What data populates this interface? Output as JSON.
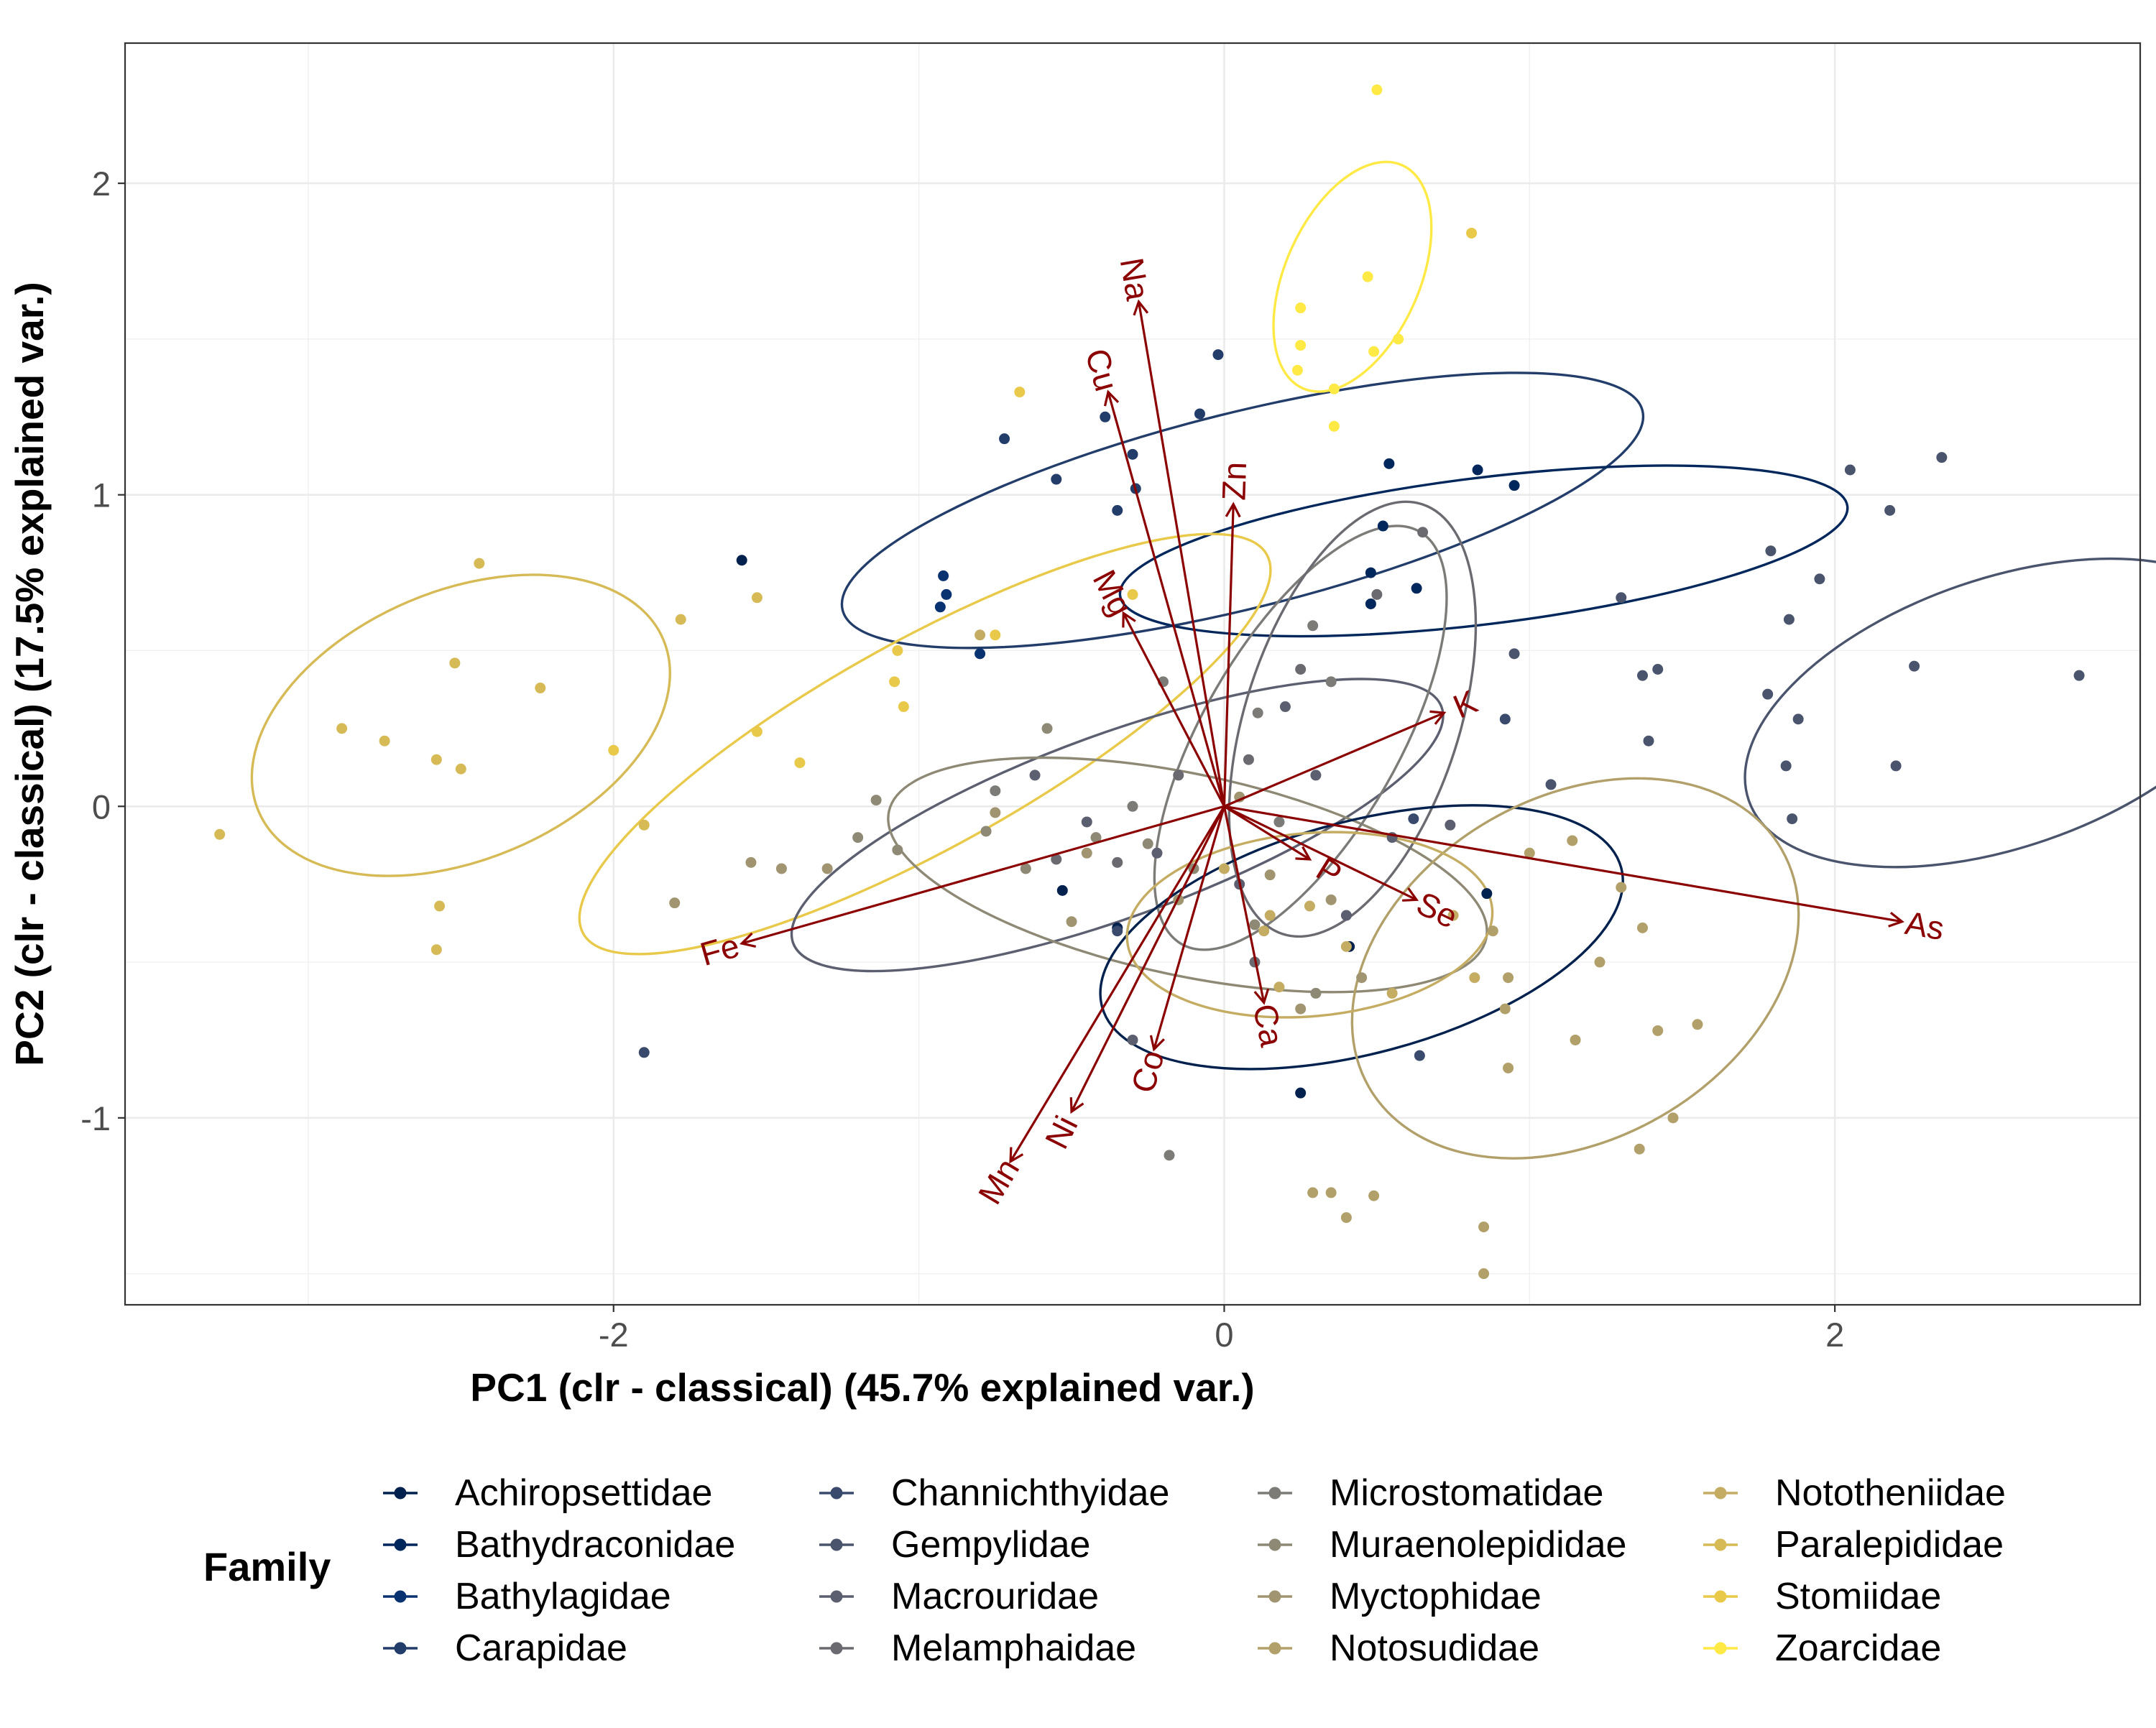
{
  "chart_data": {
    "type": "scatter",
    "title": "",
    "xlabel": "PC1 (clr - classical) (45.7% explained var.)",
    "ylabel": "PC2 (clr - classical) (17.5% explained var.)",
    "xlim": [
      -3.6,
      3.0
    ],
    "ylim": [
      -1.6,
      2.45
    ],
    "x_ticks": [
      -2,
      0,
      2
    ],
    "x_tick_labels": [
      "-2",
      "0",
      "2"
    ],
    "y_ticks": [
      -1,
      0,
      1,
      2
    ],
    "y_tick_labels": [
      "-1",
      "0",
      "1",
      "2"
    ],
    "grid": true,
    "legend": {
      "title": "Family",
      "position": "bottom",
      "columns": 4,
      "entries": [
        {
          "name": "Achiropsettidae",
          "color": "#00204D"
        },
        {
          "name": "Bathydraconidae",
          "color": "#00275C"
        },
        {
          "name": "Bathylagidae",
          "color": "#093270"
        },
        {
          "name": "Carapidae",
          "color": "#233D6B"
        },
        {
          "name": "Channichthyidae",
          "color": "#394A6C"
        },
        {
          "name": "Gempylidae",
          "color": "#4A546D"
        },
        {
          "name": "Macrouridae",
          "color": "#5B5F6F"
        },
        {
          "name": "Melamphaidae",
          "color": "#6B6A71"
        },
        {
          "name": "Microstomatidae",
          "color": "#7C7B78"
        },
        {
          "name": "Muraenolepididae",
          "color": "#8E8975"
        },
        {
          "name": "Myctophidae",
          "color": "#A09471"
        },
        {
          "name": "Notosudidae",
          "color": "#B2A06A"
        },
        {
          "name": "Nototheniidae",
          "color": "#C4AC63"
        },
        {
          "name": "Paralepididae",
          "color": "#D6BA56"
        },
        {
          "name": "Stomiidae",
          "color": "#E9C94A"
        },
        {
          "name": "Zoarcidae",
          "color": "#FFE945"
        }
      ]
    },
    "loadings": {
      "color": "#8B0000",
      "vectors": [
        {
          "label": "Na",
          "x": -0.28,
          "y": 1.62
        },
        {
          "label": "Cu",
          "x": -0.38,
          "y": 1.33
        },
        {
          "label": "Zn",
          "x": 0.03,
          "y": 0.97
        },
        {
          "label": "Mg",
          "x": -0.33,
          "y": 0.62
        },
        {
          "label": "K",
          "x": 0.72,
          "y": 0.3
        },
        {
          "label": "P",
          "x": 0.28,
          "y": -0.17
        },
        {
          "label": "Se",
          "x": 0.63,
          "y": -0.3
        },
        {
          "label": "As",
          "x": 2.22,
          "y": -0.37
        },
        {
          "label": "Fe",
          "x": -1.58,
          "y": -0.44
        },
        {
          "label": "Ca",
          "x": 0.13,
          "y": -0.63
        },
        {
          "label": "Co",
          "x": -0.23,
          "y": -0.78
        },
        {
          "label": "Ni",
          "x": -0.5,
          "y": -0.98
        },
        {
          "label": "Mn",
          "x": -0.7,
          "y": -1.14
        }
      ]
    },
    "ellipses": [
      {
        "family": "Carapidae",
        "cx": 0.06,
        "cy": 0.95,
        "rx": 1.35,
        "ry": 0.32,
        "angle": 14
      },
      {
        "family": "Bathydraconidae",
        "cx": 0.85,
        "cy": 0.82,
        "rx": 1.2,
        "ry": 0.24,
        "angle": 7
      },
      {
        "family": "Gempylidae",
        "cx": 2.55,
        "cy": 0.3,
        "rx": 0.88,
        "ry": 0.44,
        "angle": 19
      },
      {
        "family": "Zoarcidae",
        "cx": 0.42,
        "cy": 1.7,
        "rx": 0.4,
        "ry": 0.22,
        "angle": 66
      },
      {
        "family": "Stomiidae",
        "cx": -0.98,
        "cy": 0.2,
        "rx": 1.28,
        "ry": 0.34,
        "angle": 29
      },
      {
        "family": "Paralepididae",
        "cx": -2.5,
        "cy": 0.26,
        "rx": 0.72,
        "ry": 0.44,
        "angle": 23
      },
      {
        "family": "Macrouridae",
        "cx": -0.35,
        "cy": -0.06,
        "rx": 1.13,
        "ry": 0.3,
        "angle": 20
      },
      {
        "family": "Muraenolepididae",
        "cx": -0.12,
        "cy": -0.22,
        "rx": 1.0,
        "ry": 0.33,
        "angle": -12
      },
      {
        "family": "Microstomatidae",
        "cx": 0.25,
        "cy": 0.22,
        "rx": 0.78,
        "ry": 0.32,
        "angle": 60
      },
      {
        "family": "Melamphaidae",
        "cx": 0.42,
        "cy": 0.28,
        "rx": 0.74,
        "ry": 0.35,
        "angle": 72
      },
      {
        "family": "Achiropsettidae",
        "cx": 0.45,
        "cy": -0.42,
        "rx": 0.88,
        "ry": 0.38,
        "angle": 15
      },
      {
        "family": "Notosudidae",
        "cx": 1.15,
        "cy": -0.52,
        "rx": 0.78,
        "ry": 0.56,
        "angle": 30
      },
      {
        "family": "Nototheniidae",
        "cx": 0.28,
        "cy": -0.38,
        "rx": 0.6,
        "ry": 0.3,
        "angle": 5
      }
    ],
    "points": [
      {
        "family": "Zoarcidae",
        "x": 0.5,
        "y": 2.3
      },
      {
        "family": "Zoarcidae",
        "x": 0.47,
        "y": 1.7
      },
      {
        "family": "Zoarcidae",
        "x": 0.57,
        "y": 1.5
      },
      {
        "family": "Zoarcidae",
        "x": 0.49,
        "y": 1.46
      },
      {
        "family": "Zoarcidae",
        "x": 0.25,
        "y": 1.6
      },
      {
        "family": "Zoarcidae",
        "x": 0.25,
        "y": 1.48
      },
      {
        "family": "Zoarcidae",
        "x": 0.24,
        "y": 1.4
      },
      {
        "family": "Zoarcidae",
        "x": 0.36,
        "y": 1.34
      },
      {
        "family": "Zoarcidae",
        "x": 0.36,
        "y": 1.22
      },
      {
        "family": "Stomiidae",
        "x": 0.81,
        "y": 1.84
      },
      {
        "family": "Stomiidae",
        "x": -0.67,
        "y": 1.33
      },
      {
        "family": "Stomiidae",
        "x": -1.07,
        "y": 0.5
      },
      {
        "family": "Stomiidae",
        "x": -1.08,
        "y": 0.4
      },
      {
        "family": "Stomiidae",
        "x": -1.05,
        "y": 0.32
      },
      {
        "family": "Stomiidae",
        "x": -2.0,
        "y": 0.18
      },
      {
        "family": "Stomiidae",
        "x": -1.53,
        "y": 0.24
      },
      {
        "family": "Stomiidae",
        "x": -1.39,
        "y": 0.14
      },
      {
        "family": "Stomiidae",
        "x": -0.75,
        "y": 0.55
      },
      {
        "family": "Stomiidae",
        "x": -0.3,
        "y": 0.68
      },
      {
        "family": "Paralepididae",
        "x": -2.44,
        "y": 0.78
      },
      {
        "family": "Paralepididae",
        "x": -1.78,
        "y": 0.6
      },
      {
        "family": "Paralepididae",
        "x": -1.53,
        "y": 0.67
      },
      {
        "family": "Paralepididae",
        "x": -2.24,
        "y": 0.38
      },
      {
        "family": "Paralepididae",
        "x": -2.52,
        "y": 0.46
      },
      {
        "family": "Paralepididae",
        "x": -2.89,
        "y": 0.25
      },
      {
        "family": "Paralepididae",
        "x": -2.75,
        "y": 0.21
      },
      {
        "family": "Paralepididae",
        "x": -2.58,
        "y": 0.15
      },
      {
        "family": "Paralepididae",
        "x": -2.5,
        "y": 0.12
      },
      {
        "family": "Paralepididae",
        "x": -2.57,
        "y": -0.32
      },
      {
        "family": "Paralepididae",
        "x": -2.58,
        "y": -0.46
      },
      {
        "family": "Paralepididae",
        "x": -3.29,
        "y": -0.09
      },
      {
        "family": "Paralepididae",
        "x": -1.9,
        "y": -0.06
      },
      {
        "family": "Carapidae",
        "x": -0.02,
        "y": 1.45
      },
      {
        "family": "Carapidae",
        "x": -0.08,
        "y": 1.26
      },
      {
        "family": "Carapidae",
        "x": -0.39,
        "y": 1.25
      },
      {
        "family": "Carapidae",
        "x": -0.3,
        "y": 1.13
      },
      {
        "family": "Carapidae",
        "x": -0.72,
        "y": 1.18
      },
      {
        "family": "Carapidae",
        "x": -0.55,
        "y": 1.05
      },
      {
        "family": "Carapidae",
        "x": -0.29,
        "y": 1.02
      },
      {
        "family": "Carapidae",
        "x": -0.35,
        "y": 0.95
      },
      {
        "family": "Bathydraconidae",
        "x": 0.54,
        "y": 1.1
      },
      {
        "family": "Bathydraconidae",
        "x": 0.83,
        "y": 1.08
      },
      {
        "family": "Bathydraconidae",
        "x": 0.95,
        "y": 1.03
      },
      {
        "family": "Bathydraconidae",
        "x": 0.52,
        "y": 0.9
      },
      {
        "family": "Bathydraconidae",
        "x": 0.48,
        "y": 0.75
      },
      {
        "family": "Bathydraconidae",
        "x": 0.63,
        "y": 0.7
      },
      {
        "family": "Bathydraconidae",
        "x": 0.48,
        "y": 0.65
      },
      {
        "family": "Bathylagidae",
        "x": -0.92,
        "y": 0.74
      },
      {
        "family": "Bathylagidae",
        "x": -0.91,
        "y": 0.68
      },
      {
        "family": "Bathylagidae",
        "x": -0.93,
        "y": 0.64
      },
      {
        "family": "Bathylagidae",
        "x": -0.8,
        "y": 0.49
      },
      {
        "family": "Achiropsettidae",
        "x": -1.58,
        "y": 0.79
      },
      {
        "family": "Achiropsettidae",
        "x": -0.53,
        "y": -0.27
      },
      {
        "family": "Achiropsettidae",
        "x": -0.35,
        "y": -0.39
      },
      {
        "family": "Achiropsettidae",
        "x": 0.25,
        "y": -0.92
      },
      {
        "family": "Achiropsettidae",
        "x": 0.86,
        "y": -0.28
      },
      {
        "family": "Achiropsettidae",
        "x": 0.41,
        "y": -0.45
      },
      {
        "family": "Gempylidae",
        "x": 2.05,
        "y": 1.08
      },
      {
        "family": "Gempylidae",
        "x": 2.35,
        "y": 1.12
      },
      {
        "family": "Gempylidae",
        "x": 2.18,
        "y": 0.95
      },
      {
        "family": "Gempylidae",
        "x": 1.79,
        "y": 0.82
      },
      {
        "family": "Gempylidae",
        "x": 1.95,
        "y": 0.73
      },
      {
        "family": "Gempylidae",
        "x": 1.3,
        "y": 0.67
      },
      {
        "family": "Gempylidae",
        "x": 1.85,
        "y": 0.6
      },
      {
        "family": "Gempylidae",
        "x": 0.95,
        "y": 0.49
      },
      {
        "family": "Gempylidae",
        "x": 2.26,
        "y": 0.45
      },
      {
        "family": "Gempylidae",
        "x": 1.37,
        "y": 0.42
      },
      {
        "family": "Gempylidae",
        "x": 1.42,
        "y": 0.44
      },
      {
        "family": "Gempylidae",
        "x": 1.78,
        "y": 0.36
      },
      {
        "family": "Gempylidae",
        "x": 1.88,
        "y": 0.28
      },
      {
        "family": "Gempylidae",
        "x": 2.8,
        "y": 0.42
      },
      {
        "family": "Gempylidae",
        "x": 1.39,
        "y": 0.21
      },
      {
        "family": "Gempylidae",
        "x": 1.84,
        "y": 0.13
      },
      {
        "family": "Gempylidae",
        "x": 2.2,
        "y": 0.13
      },
      {
        "family": "Gempylidae",
        "x": 1.07,
        "y": 0.07
      },
      {
        "family": "Gempylidae",
        "x": 1.86,
        "y": -0.04
      },
      {
        "family": "Channichthyidae",
        "x": -1.9,
        "y": -0.79
      },
      {
        "family": "Channichthyidae",
        "x": -0.35,
        "y": -0.4
      },
      {
        "family": "Channichthyidae",
        "x": 0.92,
        "y": 0.28
      },
      {
        "family": "Channichthyidae",
        "x": 0.62,
        "y": -0.04
      },
      {
        "family": "Channichthyidae",
        "x": 0.64,
        "y": -0.8
      },
      {
        "family": "Macrouridae",
        "x": -0.62,
        "y": 0.1
      },
      {
        "family": "Macrouridae",
        "x": -0.45,
        "y": -0.05
      },
      {
        "family": "Macrouridae",
        "x": -0.22,
        "y": -0.15
      },
      {
        "family": "Macrouridae",
        "x": 0.05,
        "y": -0.25
      },
      {
        "family": "Macrouridae",
        "x": 0.3,
        "y": 0.1
      },
      {
        "family": "Macrouridae",
        "x": 0.2,
        "y": 0.32
      },
      {
        "family": "Macrouridae",
        "x": 0.55,
        "y": -0.1
      },
      {
        "family": "Macrouridae",
        "x": 0.74,
        "y": -0.06
      },
      {
        "family": "Macrouridae",
        "x": 0.4,
        "y": -0.35
      },
      {
        "family": "Macrouridae",
        "x": -0.3,
        "y": -0.75
      },
      {
        "family": "Melamphaidae",
        "x": 0.65,
        "y": 0.88
      },
      {
        "family": "Melamphaidae",
        "x": 0.5,
        "y": 0.68
      },
      {
        "family": "Melamphaidae",
        "x": 0.25,
        "y": 0.44
      },
      {
        "family": "Melamphaidae",
        "x": 0.08,
        "y": 0.15
      },
      {
        "family": "Melamphaidae",
        "x": -0.15,
        "y": 0.1
      },
      {
        "family": "Melamphaidae",
        "x": -0.55,
        "y": -0.17
      },
      {
        "family": "Melamphaidae",
        "x": -0.35,
        "y": -0.18
      },
      {
        "family": "Melamphaidae",
        "x": 0.1,
        "y": -0.5
      },
      {
        "family": "Microstomatidae",
        "x": 0.29,
        "y": 0.58
      },
      {
        "family": "Microstomatidae",
        "x": 0.35,
        "y": 0.4
      },
      {
        "family": "Microstomatidae",
        "x": -0.2,
        "y": 0.4
      },
      {
        "family": "Microstomatidae",
        "x": 0.11,
        "y": 0.3
      },
      {
        "family": "Microstomatidae",
        "x": -0.75,
        "y": 0.05
      },
      {
        "family": "Microstomatidae",
        "x": -0.3,
        "y": 0.0
      },
      {
        "family": "Microstomatidae",
        "x": 0.18,
        "y": -0.05
      },
      {
        "family": "Microstomatidae",
        "x": -0.18,
        "y": -1.12
      },
      {
        "family": "Muraenolepididae",
        "x": -1.14,
        "y": 0.02
      },
      {
        "family": "Muraenolepididae",
        "x": -0.58,
        "y": 0.25
      },
      {
        "family": "Muraenolepididae",
        "x": -1.2,
        "y": -0.1
      },
      {
        "family": "Muraenolepididae",
        "x": -1.07,
        "y": -0.14
      },
      {
        "family": "Muraenolepididae",
        "x": -0.78,
        "y": -0.08
      },
      {
        "family": "Muraenolepididae",
        "x": -0.65,
        "y": -0.2
      },
      {
        "family": "Muraenolepididae",
        "x": -0.42,
        "y": -0.1
      },
      {
        "family": "Muraenolepididae",
        "x": -0.25,
        "y": -0.12
      },
      {
        "family": "Muraenolepididae",
        "x": -0.1,
        "y": -0.2
      },
      {
        "family": "Muraenolepididae",
        "x": 0.1,
        "y": -0.38
      },
      {
        "family": "Muraenolepididae",
        "x": 0.3,
        "y": -0.6
      },
      {
        "family": "Myctophidae",
        "x": -0.75,
        "y": -0.02
      },
      {
        "family": "Myctophidae",
        "x": -0.45,
        "y": -0.15
      },
      {
        "family": "Myctophidae",
        "x": -0.15,
        "y": -0.3
      },
      {
        "family": "Myctophidae",
        "x": 0.05,
        "y": 0.03
      },
      {
        "family": "Myctophidae",
        "x": 0.15,
        "y": -0.22
      },
      {
        "family": "Myctophidae",
        "x": 0.35,
        "y": -0.3
      },
      {
        "family": "Myctophidae",
        "x": 0.45,
        "y": -0.55
      },
      {
        "family": "Myctophidae",
        "x": 0.25,
        "y": -0.65
      },
      {
        "family": "Myctophidae",
        "x": -0.5,
        "y": -0.37
      },
      {
        "family": "Myctophidae",
        "x": -1.3,
        "y": -0.2
      },
      {
        "family": "Myctophidae",
        "x": -1.45,
        "y": -0.2
      },
      {
        "family": "Myctophidae",
        "x": -1.55,
        "y": -0.18
      },
      {
        "family": "Myctophidae",
        "x": -1.8,
        "y": -0.31
      },
      {
        "family": "Notosudidae",
        "x": 1.0,
        "y": -0.15
      },
      {
        "family": "Notosudidae",
        "x": 1.14,
        "y": -0.11
      },
      {
        "family": "Notosudidae",
        "x": 1.3,
        "y": -0.26
      },
      {
        "family": "Notosudidae",
        "x": 1.37,
        "y": -0.39
      },
      {
        "family": "Notosudidae",
        "x": 1.23,
        "y": -0.5
      },
      {
        "family": "Notosudidae",
        "x": 1.55,
        "y": -0.7
      },
      {
        "family": "Notosudidae",
        "x": 1.42,
        "y": -0.72
      },
      {
        "family": "Notosudidae",
        "x": 1.15,
        "y": -0.75
      },
      {
        "family": "Notosudidae",
        "x": 0.93,
        "y": -0.55
      },
      {
        "family": "Notosudidae",
        "x": 0.88,
        "y": -0.4
      },
      {
        "family": "Notosudidae",
        "x": 0.92,
        "y": -0.65
      },
      {
        "family": "Notosudidae",
        "x": 1.47,
        "y": -1.0
      },
      {
        "family": "Notosudidae",
        "x": 1.36,
        "y": -1.1
      },
      {
        "family": "Notosudidae",
        "x": 0.93,
        "y": -0.84
      },
      {
        "family": "Notosudidae",
        "x": 0.85,
        "y": -1.35
      },
      {
        "family": "Notosudidae",
        "x": 0.85,
        "y": -1.5
      },
      {
        "family": "Notosudidae",
        "x": 0.4,
        "y": -1.32
      },
      {
        "family": "Notosudidae",
        "x": 0.29,
        "y": -1.24
      },
      {
        "family": "Notosudidae",
        "x": 0.35,
        "y": -1.24
      },
      {
        "family": "Notosudidae",
        "x": 0.49,
        "y": -1.25
      },
      {
        "family": "Nototheniidae",
        "x": -0.8,
        "y": 0.55
      },
      {
        "family": "Nototheniidae",
        "x": 0.15,
        "y": -0.35
      },
      {
        "family": "Nototheniidae",
        "x": 0.28,
        "y": -0.32
      },
      {
        "family": "Nototheniidae",
        "x": 0.4,
        "y": -0.45
      },
      {
        "family": "Nototheniidae",
        "x": 0.55,
        "y": -0.6
      },
      {
        "family": "Nototheniidae",
        "x": 0.75,
        "y": -0.35
      },
      {
        "family": "Nototheniidae",
        "x": 0.82,
        "y": -0.55
      },
      {
        "family": "Nototheniidae",
        "x": 0.18,
        "y": -0.58
      },
      {
        "family": "Nototheniidae",
        "x": 0.0,
        "y": -0.2
      },
      {
        "family": "Nototheniidae",
        "x": 0.13,
        "y": -0.4
      }
    ]
  }
}
